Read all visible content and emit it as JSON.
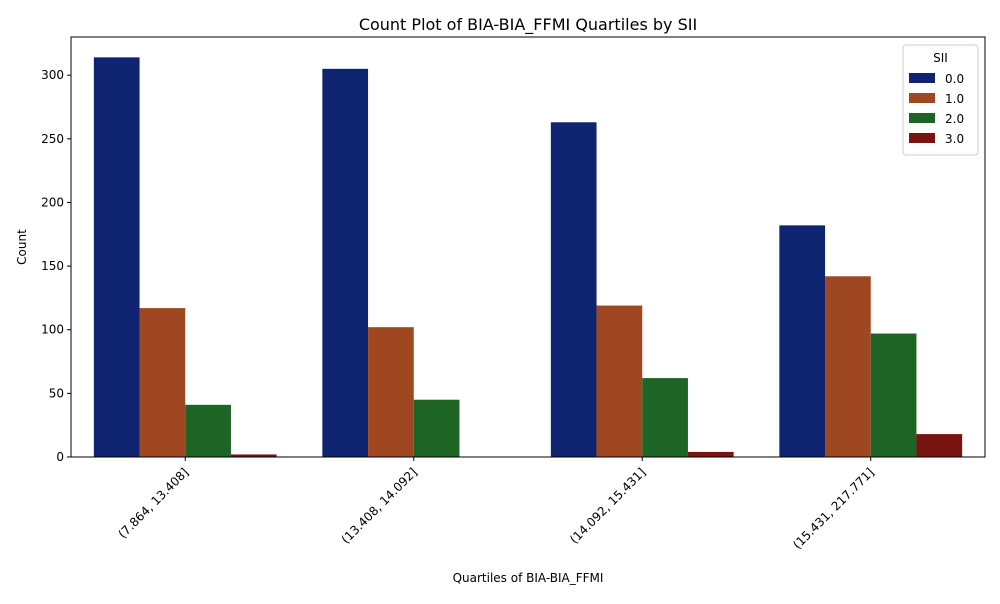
{
  "chart_data": {
    "type": "bar",
    "title": "Count Plot of BIA-BIA_FFMI Quartiles by SII",
    "xlabel": "Quartiles of BIA-BIA_FFMI",
    "ylabel": "Count",
    "categories": [
      "(7.864, 13.408]",
      "(13.408, 14.092]",
      "(14.092, 15.431]",
      "(15.431, 217.771]"
    ],
    "series": [
      {
        "name": "0.0",
        "color": "#0f2470",
        "values": [
          314,
          305,
          263,
          182
        ]
      },
      {
        "name": "1.0",
        "color": "#9e4720",
        "values": [
          117,
          102,
          119,
          142
        ]
      },
      {
        "name": "2.0",
        "color": "#1e6424",
        "values": [
          41,
          45,
          62,
          97
        ]
      },
      {
        "name": "3.0",
        "color": "#7a1410",
        "values": [
          2,
          0,
          4,
          18
        ]
      }
    ],
    "ylim": [
      0,
      330
    ],
    "yticks": [
      0,
      50,
      100,
      150,
      200,
      250,
      300
    ],
    "legend": {
      "title": "SII",
      "placement": "top-right"
    },
    "grid": false
  }
}
